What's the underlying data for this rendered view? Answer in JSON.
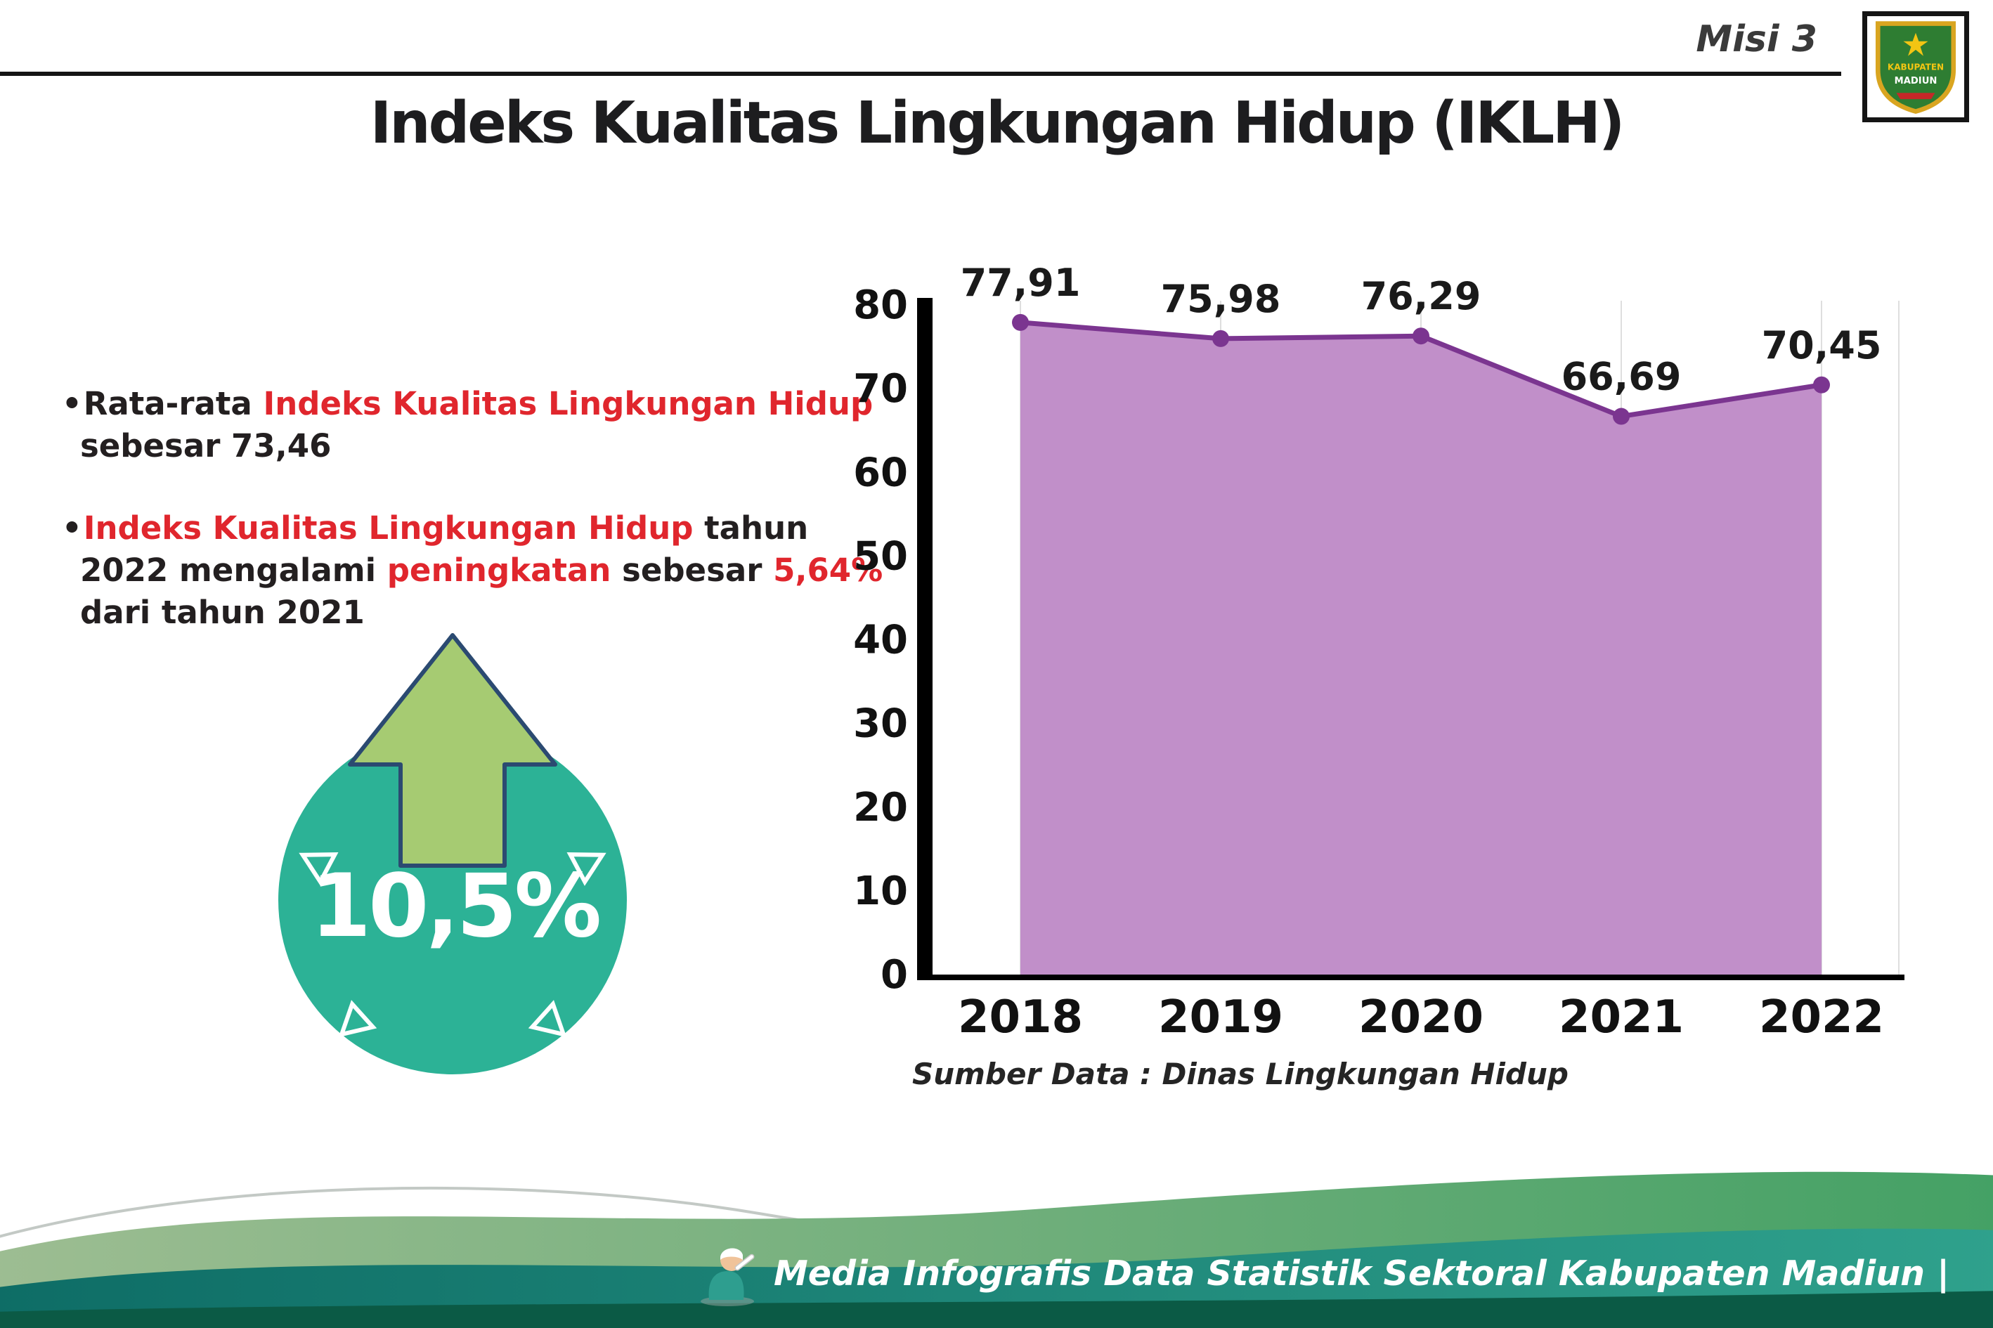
{
  "header": {
    "misi": "Misi 3",
    "title": "Indeks Kualitas Lingkungan Hidup (IKLH)"
  },
  "logo": {
    "top_text": "KABUPATEN",
    "bottom_text": "MADIUN"
  },
  "bullets": [
    {
      "segments": [
        {
          "text": "Rata-rata ",
          "highlight": false
        },
        {
          "text": "Indeks Kualitas Lingkungan Hidup",
          "highlight": true
        },
        {
          "text": " sebesar 73,46",
          "highlight": false
        }
      ]
    },
    {
      "segments": [
        {
          "text": "Indeks Kualitas Lingkungan Hidup",
          "highlight": true
        },
        {
          "text": " tahun 2022 mengalami ",
          "highlight": false
        },
        {
          "text": "peningkatan",
          "highlight": true
        },
        {
          "text": " sebesar ",
          "highlight": false
        },
        {
          "text": "5,64%",
          "highlight": true
        },
        {
          "text": " dari tahun 2021",
          "highlight": false
        }
      ]
    }
  ],
  "increase_badge": {
    "value": "10,5%"
  },
  "chart_data": {
    "type": "area",
    "title": "Indeks Kualitas Lingkungan Hidup (IKLH)",
    "categories": [
      "2018",
      "2019",
      "2020",
      "2021",
      "2022"
    ],
    "values": [
      77.91,
      75.98,
      76.29,
      66.69,
      70.45
    ],
    "value_labels": [
      "77,91",
      "75,98",
      "76,29",
      "66,69",
      "70,45"
    ],
    "ylim": [
      0,
      80
    ],
    "ytick_step": 10,
    "ytick_labels": [
      "0",
      "10",
      "20",
      "30",
      "40",
      "50",
      "60",
      "70",
      "80"
    ],
    "grid": "vertical-light",
    "legend": "none",
    "fill_color": "#c18fc9",
    "line_color": "#7b3590",
    "source": "Sumber Data : Dinas Lingkungan Hidup"
  },
  "footer": {
    "text": "Media Infografis Data Statistik Sektoral Kabupaten Madiun |"
  },
  "colors": {
    "accent_red": "#e0262d",
    "badge_teal": "#2cb296",
    "arrow_green": "#a6cb72",
    "arrow_outline": "#2b4a71",
    "footer_dark_strip": "#0b5a45"
  }
}
